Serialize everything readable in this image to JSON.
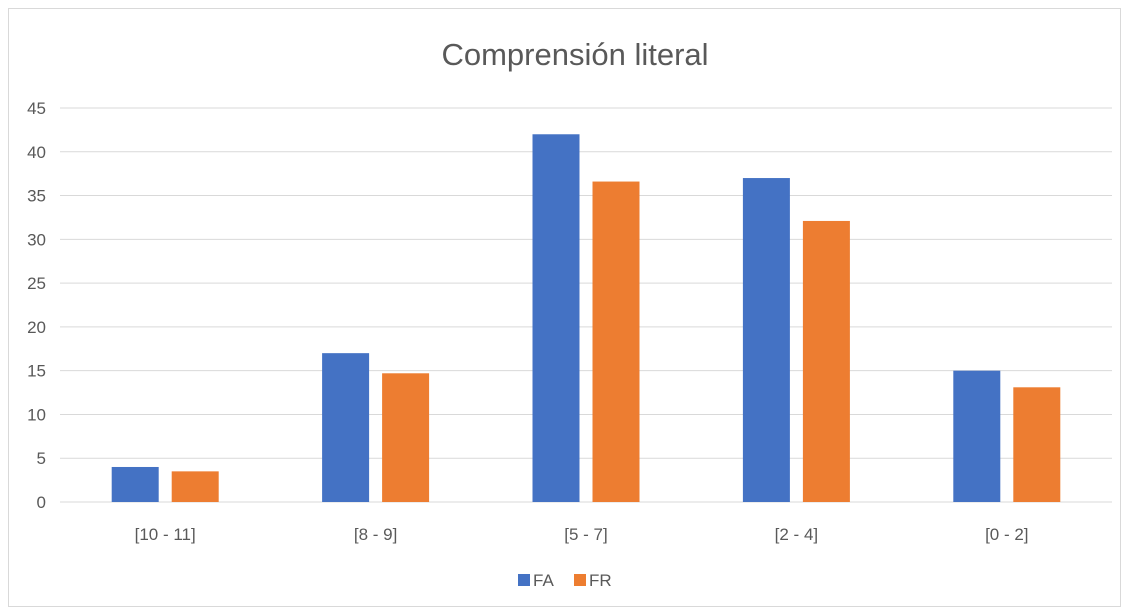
{
  "chart_data": {
    "type": "bar",
    "title": "Comprensión literal",
    "xlabel": "",
    "ylabel": "",
    "categories": [
      "[10 - 11]",
      "[8 - 9]",
      "[5 - 7]",
      "[2 - 4]",
      "[0 - 2]"
    ],
    "series": [
      {
        "name": "FA",
        "color": "#4472C4",
        "values": [
          4,
          17,
          42,
          37,
          15
        ]
      },
      {
        "name": "FR",
        "color": "#ED7D31",
        "values": [
          3.5,
          14.7,
          36.6,
          32.1,
          13.1
        ]
      }
    ],
    "ylim": [
      0,
      45
    ],
    "yticks": [
      0,
      5,
      10,
      15,
      20,
      25,
      30,
      35,
      40,
      45
    ],
    "grid": true,
    "legend_position": "bottom"
  }
}
